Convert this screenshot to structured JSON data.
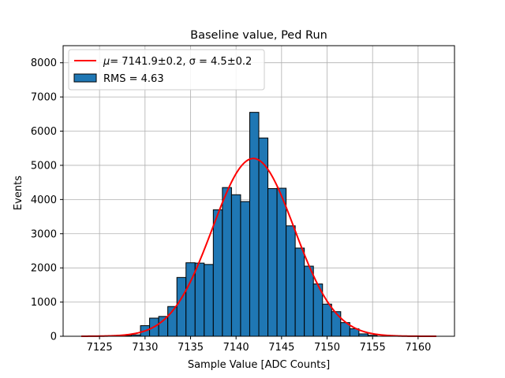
{
  "chart_data": {
    "type": "bar",
    "title": "Baseline value, Ped Run",
    "xlabel": "Sample Value [ADC Counts]",
    "ylabel": "Events",
    "xlim": [
      7121,
      7164
    ],
    "ylim": [
      0,
      8500
    ],
    "xticks": [
      7125,
      7130,
      7135,
      7140,
      7145,
      7150,
      7155,
      7160
    ],
    "yticks": [
      0,
      1000,
      2000,
      3000,
      4000,
      5000,
      6000,
      7000,
      8000
    ],
    "grid": true,
    "legend_position": "top-left",
    "histogram": {
      "label": "RMS = 4.63",
      "color": "#1f77b4",
      "bins": [
        {
          "start": 7127.5,
          "end": 7128.5,
          "count": 20
        },
        {
          "start": 7128.5,
          "end": 7129.5,
          "count": 40
        },
        {
          "start": 7129.5,
          "end": 7130.5,
          "count": 310
        },
        {
          "start": 7130.5,
          "end": 7131.5,
          "count": 530
        },
        {
          "start": 7131.5,
          "end": 7132.5,
          "count": 580
        },
        {
          "start": 7132.5,
          "end": 7133.5,
          "count": 870
        },
        {
          "start": 7133.5,
          "end": 7134.5,
          "count": 1720
        },
        {
          "start": 7134.5,
          "end": 7135.5,
          "count": 2150
        },
        {
          "start": 7135.5,
          "end": 7136.5,
          "count": 2140
        },
        {
          "start": 7136.5,
          "end": 7137.5,
          "count": 2100
        },
        {
          "start": 7137.5,
          "end": 7138.5,
          "count": 3700
        },
        {
          "start": 7138.5,
          "end": 7139.5,
          "count": 4350
        },
        {
          "start": 7139.5,
          "end": 7140.5,
          "count": 4140
        },
        {
          "start": 7140.5,
          "end": 7141.5,
          "count": 3940
        },
        {
          "start": 7141.5,
          "end": 7142.5,
          "count": 6550
        },
        {
          "start": 7142.5,
          "end": 7143.5,
          "count": 5800
        },
        {
          "start": 7143.5,
          "end": 7144.5,
          "count": 4320
        },
        {
          "start": 7144.5,
          "end": 7145.5,
          "count": 4330
        },
        {
          "start": 7145.5,
          "end": 7146.5,
          "count": 3230
        },
        {
          "start": 7146.5,
          "end": 7147.5,
          "count": 2580
        },
        {
          "start": 7147.5,
          "end": 7148.5,
          "count": 2050
        },
        {
          "start": 7148.5,
          "end": 7149.5,
          "count": 1530
        },
        {
          "start": 7149.5,
          "end": 7150.5,
          "count": 940
        },
        {
          "start": 7150.5,
          "end": 7151.5,
          "count": 720
        },
        {
          "start": 7151.5,
          "end": 7152.5,
          "count": 400
        },
        {
          "start": 7152.5,
          "end": 7153.5,
          "count": 220
        },
        {
          "start": 7153.5,
          "end": 7154.5,
          "count": 70
        },
        {
          "start": 7154.5,
          "end": 7155.5,
          "count": 30
        }
      ]
    },
    "fit": {
      "label_prefix": "μ",
      "label": "= 7141.9±0.2, σ = 4.5±0.2",
      "mu": 7141.9,
      "sigma": 4.5,
      "amplitude": 5200,
      "x_range": [
        7123,
        7162
      ],
      "color": "#ff0000"
    }
  }
}
